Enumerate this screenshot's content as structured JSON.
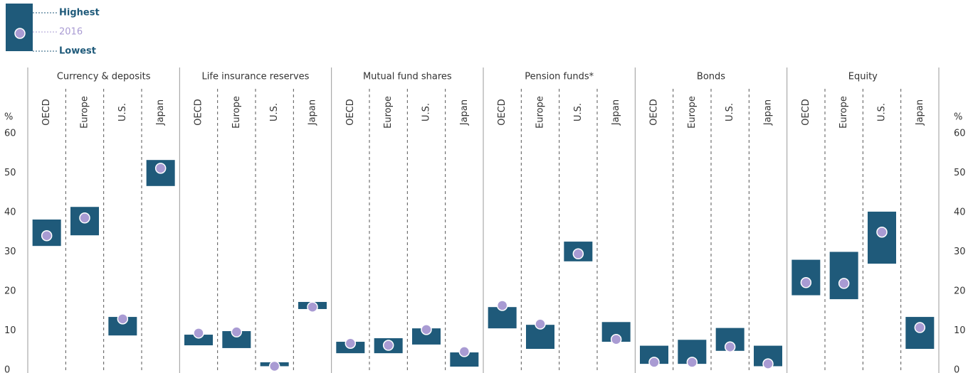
{
  "chart_data": {
    "type": "range",
    "groups": [
      "Currency & deposits",
      "Life insurance reserves",
      "Mutual fund shares",
      "Pension funds*",
      "Bonds",
      "Equity"
    ],
    "categories": [
      "OECD",
      "Europe",
      "U.S.",
      "Japan",
      "OECD",
      "Europe",
      "U.S.",
      "Japan",
      "OECD",
      "Europe",
      "U.S.",
      "Japan",
      "OECD",
      "Europe",
      "U.S.",
      "Japan",
      "OECD",
      "Europe",
      "U.S.",
      "Japan",
      "OECD",
      "Europe",
      "U.S.",
      "Japan"
    ],
    "series": [
      {
        "name": "Highest",
        "color": "#1f5a7a",
        "values": [
          38.2,
          41.4,
          13.5,
          53.3,
          9.0,
          9.9,
          2.0,
          17.3,
          7.2,
          8.1,
          10.6,
          4.5,
          16.0,
          11.5,
          32.6,
          12.2,
          6.2,
          7.7,
          10.7,
          6.2,
          28.0,
          30.0,
          40.2,
          13.5
        ]
      },
      {
        "name": "2016",
        "color": "#a99bd3",
        "values": [
          34.1,
          38.6,
          13.0,
          51.2,
          9.4,
          9.7,
          1.0,
          16.0,
          6.8,
          6.3,
          10.3,
          4.7,
          16.4,
          11.7,
          29.5,
          7.8,
          2.0,
          2.0,
          5.9,
          1.6,
          22.2,
          22.0,
          35.0,
          10.8
        ]
      },
      {
        "name": "Lowest",
        "color": "#1f5a7a",
        "values": [
          31.5,
          34.2,
          8.8,
          46.7,
          6.3,
          5.6,
          1.0,
          15.5,
          4.3,
          4.3,
          6.5,
          0.9,
          10.6,
          5.4,
          27.6,
          7.2,
          1.6,
          1.6,
          4.9,
          1.0,
          19.0,
          18.0,
          27.0,
          5.4
        ]
      }
    ],
    "y_unit": "%",
    "ylim": [
      0,
      60
    ],
    "yticks": [
      0,
      10,
      20,
      30,
      40,
      50,
      60
    ]
  }
}
